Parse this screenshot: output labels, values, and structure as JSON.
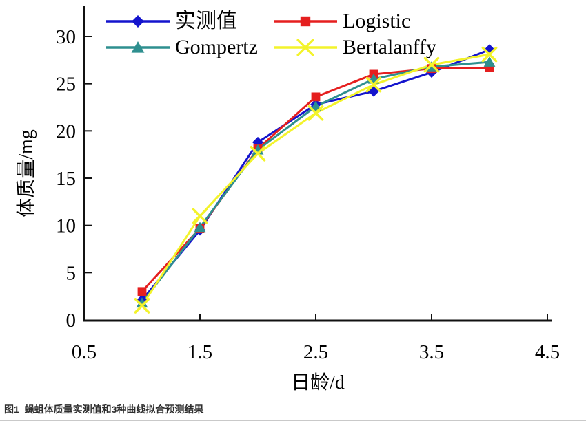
{
  "figure": {
    "caption": "图1  蝇蛆体质量实测值和3种曲线拟合预测结果"
  },
  "chart_data": {
    "type": "line",
    "title": "",
    "xlabel": "日龄/d",
    "ylabel": "体质量/mg",
    "x": [
      1.0,
      1.5,
      2.0,
      2.5,
      3.0,
      3.5,
      4.0
    ],
    "xlim": [
      0.5,
      4.5
    ],
    "ylim": [
      0,
      33
    ],
    "x_ticks": [
      0.5,
      1.5,
      2.5,
      3.5,
      4.5
    ],
    "x_tick_labels": [
      "0.5",
      "1.5",
      "2.5",
      "3.5",
      "4.5"
    ],
    "y_ticks": [
      0,
      5,
      10,
      15,
      20,
      25,
      30
    ],
    "y_tick_labels": [
      "0",
      "5",
      "10",
      "15",
      "20",
      "25",
      "30"
    ],
    "grid": false,
    "legend_position": "top-inside",
    "axis_color": "#111111",
    "series": [
      {
        "name": "实测值",
        "marker": "diamond",
        "color": "#1414cd",
        "values": [
          2.1,
          9.5,
          18.8,
          22.8,
          24.2,
          26.2,
          28.6
        ]
      },
      {
        "name": "Logistic",
        "marker": "square",
        "color": "#e51f1f",
        "values": [
          3.0,
          9.7,
          18.1,
          23.6,
          26.0,
          26.6,
          26.7
        ]
      },
      {
        "name": "Gompertz",
        "marker": "triangle",
        "color": "#2e8f8f",
        "values": [
          1.8,
          9.8,
          18.0,
          22.6,
          25.5,
          26.8,
          27.3
        ]
      },
      {
        "name": "Bertalanffy",
        "marker": "x",
        "color": "#f3f32b",
        "values": [
          1.5,
          11.0,
          17.6,
          21.9,
          24.9,
          27.0,
          28.1
        ]
      }
    ]
  }
}
